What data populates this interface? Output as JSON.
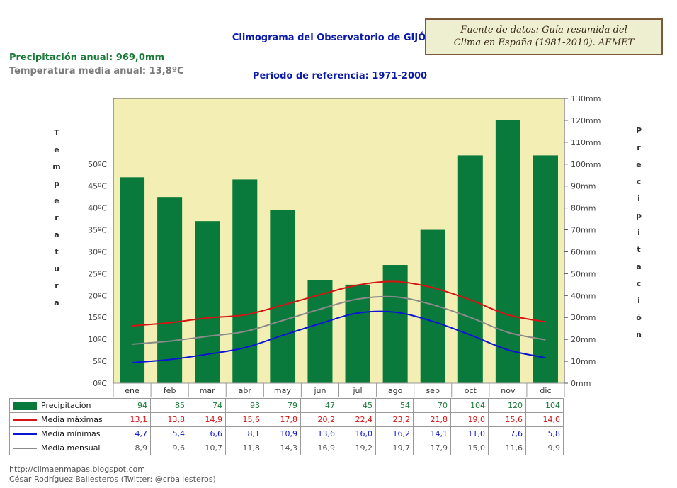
{
  "header": {
    "title": "Climograma del Observatorio de GIJÓN",
    "period": "Periodo de referencia: 1971-2000",
    "annual_precipitation": "Precipitación anual: 969,0mm",
    "annual_temperature": "Temperatura media anual: 13,8ºC",
    "source_line1": "Fuente de datos: Guía resumida del",
    "source_line2": "Clima en España (1981-2010). AEMET"
  },
  "axis_labels": {
    "left": [
      "T",
      "e",
      "m",
      "p",
      "e",
      "r",
      "a",
      "t",
      "u",
      "r",
      "a"
    ],
    "right": [
      "P",
      "r",
      "e",
      "c",
      "i",
      "p",
      "i",
      "t",
      "a",
      "c",
      "i",
      "ó",
      "n"
    ]
  },
  "footer": {
    "url": "http://climaenmapas.blogspot.com",
    "author": "César Rodríguez Ballesteros (Twitter: @crballesteros)"
  },
  "colors": {
    "plot_bg": "#f3efb4",
    "bar": "#0a7a3c",
    "max": "#d41414",
    "min": "#0a14d4",
    "mean": "#8a8a8a",
    "precip_text": "#1a7a3a"
  },
  "chart_data": {
    "type": "bar",
    "title": "Climograma del Observatorio de GIJÓN",
    "categories": [
      "ene",
      "feb",
      "mar",
      "abr",
      "may",
      "jun",
      "jul",
      "ago",
      "sep",
      "oct",
      "nov",
      "dic"
    ],
    "y_left": {
      "label": "Temperatura",
      "ticks": [
        "0ºC",
        "5ºC",
        "10ºC",
        "15ºC",
        "20ºC",
        "25ºC",
        "30ºC",
        "35ºC",
        "40ºC",
        "45ºC",
        "50ºC"
      ],
      "range": [
        0,
        65
      ]
    },
    "y_right": {
      "label": "Precipitación",
      "ticks": [
        "0mm",
        "10mm",
        "20mm",
        "30mm",
        "40mm",
        "50mm",
        "60mm",
        "70mm",
        "80mm",
        "90mm",
        "100mm",
        "110mm",
        "120mm",
        "130mm"
      ],
      "range": [
        0,
        130
      ]
    },
    "series": [
      {
        "name": "Precipitación",
        "type": "bar",
        "axis": "right",
        "values": [
          94,
          85,
          74,
          93,
          79,
          47,
          45,
          54,
          70,
          104,
          120,
          104
        ],
        "labels": [
          "94",
          "85",
          "74",
          "93",
          "79",
          "47",
          "45",
          "54",
          "70",
          "104",
          "120",
          "104"
        ]
      },
      {
        "name": "Media máximas",
        "type": "line",
        "axis": "left",
        "values": [
          13.1,
          13.8,
          14.9,
          15.6,
          17.8,
          20.2,
          22.4,
          23.2,
          21.8,
          19.0,
          15.6,
          14.0
        ],
        "labels": [
          "13,1",
          "13,8",
          "14,9",
          "15,6",
          "17,8",
          "20,2",
          "22,4",
          "23,2",
          "21,8",
          "19,0",
          "15,6",
          "14,0"
        ]
      },
      {
        "name": "Media mínimas",
        "type": "line",
        "axis": "left",
        "values": [
          4.7,
          5.4,
          6.6,
          8.1,
          10.9,
          13.6,
          16.0,
          16.2,
          14.1,
          11.0,
          7.6,
          5.8
        ],
        "labels": [
          "4,7",
          "5,4",
          "6,6",
          "8,1",
          "10,9",
          "13,6",
          "16,0",
          "16,2",
          "14,1",
          "11,0",
          "7,6",
          "5,8"
        ]
      },
      {
        "name": "Media mensual",
        "type": "line",
        "axis": "left",
        "values": [
          8.9,
          9.6,
          10.7,
          11.8,
          14.3,
          16.9,
          19.2,
          19.7,
          17.9,
          15.0,
          11.6,
          9.9
        ],
        "labels": [
          "8,9",
          "9,6",
          "10,7",
          "11,8",
          "14,3",
          "16,9",
          "19,2",
          "19,7",
          "17,9",
          "15,0",
          "11,6",
          "9,9"
        ]
      }
    ]
  }
}
